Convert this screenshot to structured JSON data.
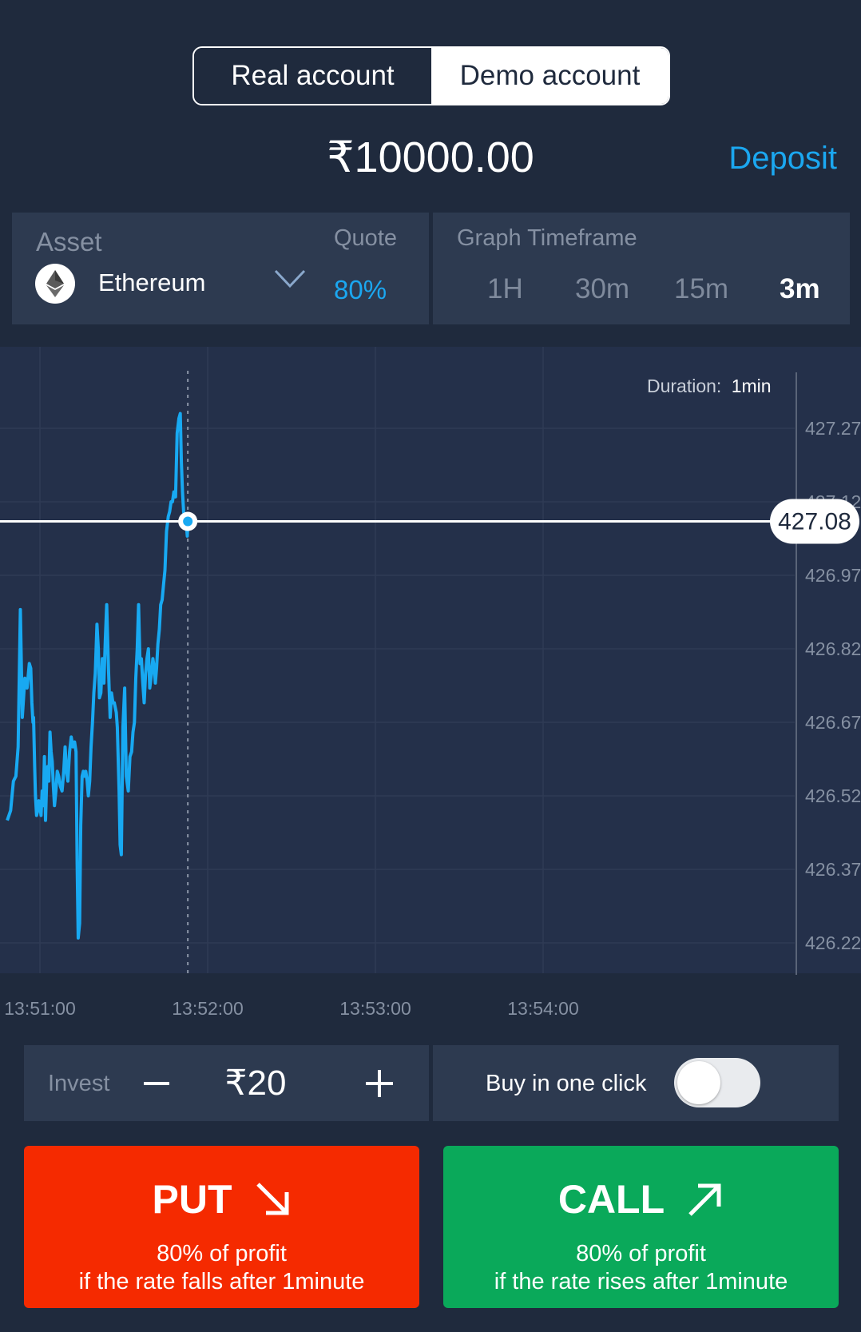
{
  "account": {
    "real_label": "Real account",
    "demo_label": "Demo account",
    "selected": "demo"
  },
  "balance": "₹10000.00",
  "deposit_label": "Deposit",
  "asset": {
    "label": "Asset",
    "name": "Ethereum",
    "quote_label": "Quote",
    "quote_value": "80%"
  },
  "timeframe": {
    "label": "Graph Timeframe",
    "options": [
      "1H",
      "30m",
      "15m",
      "3m"
    ],
    "active": "3m"
  },
  "chart_data": {
    "type": "line",
    "duration_label": "Duration:",
    "duration_value": "1min",
    "current_price": "427.08",
    "yticks": [
      "427.27",
      "427.12",
      "426.97",
      "426.82",
      "426.67",
      "426.52",
      "426.37",
      "426.22"
    ],
    "xticks": [
      "13:51:00",
      "13:52:00",
      "13:53:00",
      "13:54:00"
    ],
    "ylim": [
      426.2,
      427.34
    ],
    "xlim_seconds_from_1351": [
      -12,
      55
    ],
    "series": [
      {
        "x": [
          -11.7,
          -10.5,
          -9.5,
          -8.6,
          -7.8,
          -7,
          -6.3,
          -5.4,
          -4.6,
          -3.8,
          -3.3,
          -2.9,
          -2.5,
          -2.3,
          -1.9,
          -1.6,
          -1.2,
          -0.8,
          -0.4,
          0,
          0.4,
          0.8,
          1.2,
          1.6,
          2,
          2.4,
          2.8,
          3.2,
          3.6,
          4,
          4.4,
          4.8,
          5.2,
          5.7,
          6.2,
          6.7,
          7.3,
          7.9,
          8.5,
          9,
          9.5,
          10,
          10.6,
          11.2,
          11.8,
          12.4,
          12.9,
          13.3,
          13.7,
          14.2,
          14.6,
          15.1,
          15.5,
          15.9,
          16.4,
          16.9,
          17.3,
          17.8,
          18.3,
          18.8,
          19.3,
          19.8,
          20.4,
          20.9,
          21.3,
          21.8,
          22.3,
          22.9,
          23.4,
          23.9,
          24.5,
          25.1,
          25.6,
          26.1,
          26.6,
          27.3,
          27.7,
          28.3,
          28.7,
          29.1,
          29.7,
          30.3,
          30.9,
          31.6,
          32.2,
          32.8,
          33.3,
          33.8,
          34.3,
          34.8,
          35.3,
          35.8,
          36.3,
          36.8,
          37.3,
          37.8,
          38.3,
          38.8,
          39.3,
          39.9,
          40.4,
          40.9,
          41.3,
          41.7,
          42.2,
          42.7,
          43.2,
          43.7,
          44.2,
          44.7,
          45.3,
          45.9,
          46.4,
          46.9,
          47.4,
          47.9,
          48.5,
          49.1,
          49.7,
          50.2,
          50.6,
          51,
          51.4,
          51.9,
          52.3,
          52.7,
          52.9
        ],
        "y": [
          426.47,
          426.49,
          426.55,
          426.56,
          426.62,
          426.9,
          426.68,
          426.76,
          426.74,
          426.79,
          426.78,
          426.71,
          426.67,
          426.68,
          426.58,
          426.52,
          426.48,
          426.49,
          426.51,
          426.5,
          426.48,
          426.53,
          426.5,
          426.6,
          426.47,
          426.55,
          426.58,
          426.55,
          426.65,
          426.61,
          426.59,
          426.54,
          426.5,
          426.53,
          426.57,
          426.56,
          426.54,
          426.53,
          426.57,
          426.62,
          426.57,
          426.55,
          426.61,
          426.64,
          426.62,
          426.63,
          426.61,
          426.38,
          426.23,
          426.26,
          426.46,
          426.56,
          426.57,
          426.56,
          426.57,
          426.55,
          426.52,
          426.55,
          426.62,
          426.67,
          426.73,
          426.77,
          426.87,
          426.82,
          426.72,
          426.73,
          426.8,
          426.75,
          426.84,
          426.91,
          426.78,
          426.68,
          426.73,
          426.71,
          426.71,
          426.69,
          426.66,
          426.53,
          426.42,
          426.4,
          426.66,
          426.74,
          426.56,
          426.53,
          426.6,
          426.61,
          426.65,
          426.67,
          426.76,
          426.82,
          426.91,
          426.79,
          426.8,
          426.75,
          426.71,
          426.77,
          426.8,
          426.82,
          426.74,
          426.77,
          426.8,
          426.78,
          426.75,
          426.78,
          426.83,
          426.86,
          426.91,
          426.92,
          426.95,
          426.98,
          427.06,
          427.09,
          427.1,
          427.12,
          427.12,
          427.14,
          427.13,
          427.26,
          427.29,
          427.3,
          427.2,
          427.14,
          427.1,
          427.08,
          427.08,
          427.05,
          427.08
        ]
      }
    ]
  },
  "invest": {
    "label": "Invest",
    "amount": "₹20"
  },
  "one_click": {
    "label": "Buy in one click",
    "enabled": false
  },
  "put": {
    "title": "PUT",
    "line1": "80% of profit",
    "line2": "if the rate falls after 1minute",
    "color": "#f52a00"
  },
  "call": {
    "title": "CALL",
    "line1": "80% of profit",
    "line2": "if the rate rises after 1minute",
    "color": "#0aa95a"
  },
  "colors": {
    "background": "#1f2a3d",
    "panel": "#2d3a50",
    "accent": "#1ba7f0",
    "line": "#18a9f2"
  }
}
